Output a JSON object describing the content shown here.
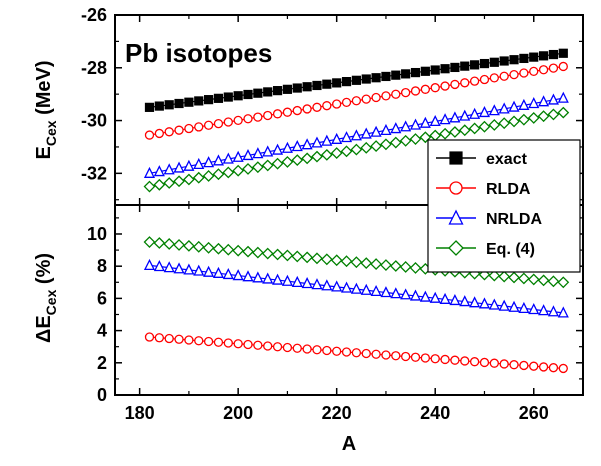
{
  "chart_data": [
    {
      "type": "line",
      "annotation": "Pb isotopes",
      "ylabel": {
        "main": "E",
        "sub": "Cex",
        "unit": "(MeV)"
      },
      "xlim": [
        175,
        270
      ],
      "ylim": [
        -33.2,
        -26
      ],
      "yticks": [
        -26,
        -28,
        -30,
        -32
      ],
      "x": {
        "start": 182,
        "end": 266,
        "step": 2
      },
      "series": [
        {
          "name": "exact",
          "marker": "square",
          "color": "#000000",
          "filled": true,
          "endpoints": [
            -29.5,
            -27.45
          ]
        },
        {
          "name": "RLDA",
          "marker": "circle",
          "color": "#ff0000",
          "filled": false,
          "endpoints": [
            -30.55,
            -27.95
          ]
        },
        {
          "name": "NRLDA",
          "marker": "triangle",
          "color": "#0000ff",
          "filled": false,
          "endpoints": [
            -32.0,
            -29.15
          ]
        },
        {
          "name": "Eq. (4)",
          "marker": "diamond",
          "color": "#008000",
          "filled": false,
          "endpoints": [
            -32.5,
            -29.7
          ]
        }
      ]
    },
    {
      "type": "line",
      "ylabel": {
        "main": "ΔE",
        "sub": "Cex",
        "unit": "(%)"
      },
      "xlabel": "A",
      "xlim": [
        175,
        270
      ],
      "ylim": [
        0,
        11.8
      ],
      "xticks": [
        180,
        200,
        220,
        240,
        260
      ],
      "yticks": [
        0,
        2,
        4,
        6,
        8,
        10
      ],
      "x": {
        "start": 182,
        "end": 266,
        "step": 2
      },
      "series": [
        {
          "name": "RLDA",
          "marker": "circle",
          "color": "#ff0000",
          "filled": false,
          "endpoints": [
            3.6,
            1.65
          ]
        },
        {
          "name": "NRLDA",
          "marker": "triangle",
          "color": "#0000ff",
          "filled": false,
          "endpoints": [
            8.05,
            5.1
          ]
        },
        {
          "name": "Eq. (4)",
          "marker": "diamond",
          "color": "#008000",
          "filled": false,
          "endpoints": [
            9.5,
            7.0
          ]
        }
      ]
    }
  ],
  "legend": {
    "placement": "right",
    "entries": [
      {
        "label": "exact",
        "marker": "square",
        "color": "#000000",
        "filled": true
      },
      {
        "label": "RLDA",
        "marker": "circle",
        "color": "#ff0000",
        "filled": false
      },
      {
        "label": "NRLDA",
        "marker": "triangle",
        "color": "#0000ff",
        "filled": false
      },
      {
        "label": "Eq. (4)",
        "marker": "diamond",
        "color": "#008000",
        "filled": false
      }
    ]
  }
}
